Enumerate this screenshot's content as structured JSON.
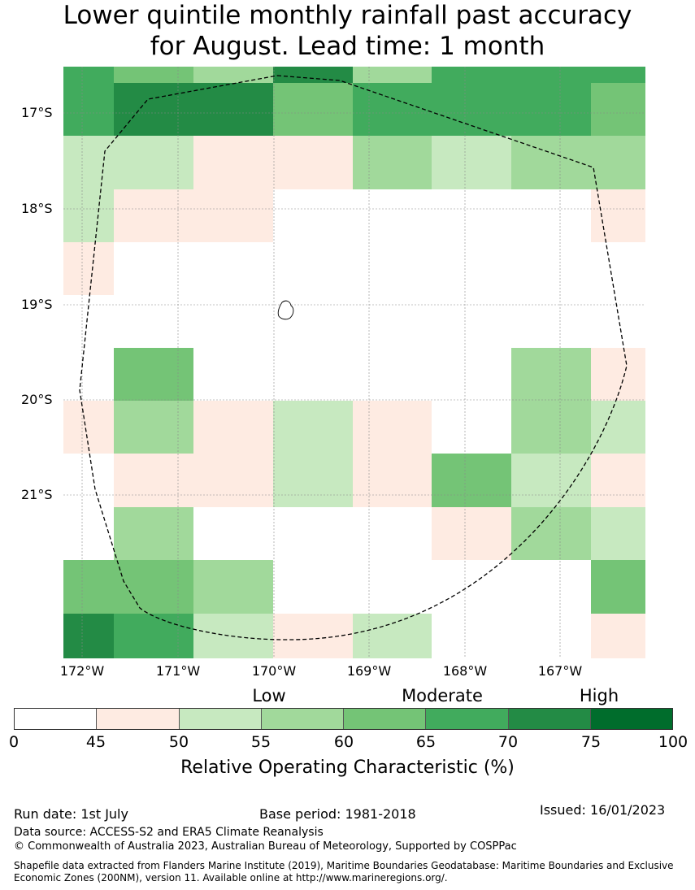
{
  "title_line1": "Lower quintile monthly rainfall past accuracy",
  "title_line2": "for August. Lead time: 1 month",
  "lat_labels": [
    "17°S",
    "18°S",
    "19°S",
    "20°S",
    "21°S"
  ],
  "lon_labels": [
    "172°W",
    "171°W",
    "170°W",
    "169°W",
    "168°W",
    "167°W"
  ],
  "category_labels": {
    "low": "Low",
    "moderate": "Moderate",
    "high": "High"
  },
  "colorbar": {
    "ticks": [
      "0",
      "45",
      "50",
      "55",
      "60",
      "65",
      "70",
      "75",
      "100"
    ],
    "colors": [
      "#ffffff",
      "#feebe2",
      "#c7e9c0",
      "#a1d99b",
      "#74c476",
      "#41ab5d",
      "#238b45",
      "#006d2c"
    ],
    "label": "Relative Operating Characteristic (%)"
  },
  "map_grid": {
    "value_class_legend": "0=<45 (white), 1=45-50, 2=50-55, 3=55-60, 4=60-65, 5=65-70, 6=70-75, 7=75-100",
    "rows": [
      [
        5,
        4,
        3,
        6,
        3,
        5,
        5,
        5
      ],
      [
        5,
        6,
        6,
        4,
        5,
        5,
        5,
        4
      ],
      [
        2,
        2,
        1,
        1,
        3,
        2,
        3,
        3
      ],
      [
        2,
        1,
        1,
        0,
        0,
        0,
        0,
        1
      ],
      [
        1,
        0,
        0,
        0,
        0,
        0,
        0,
        0
      ],
      [
        0,
        0,
        0,
        0,
        0,
        0,
        0,
        0
      ],
      [
        0,
        4,
        0,
        0,
        0,
        0,
        3,
        1
      ],
      [
        1,
        3,
        1,
        2,
        1,
        0,
        3,
        2
      ],
      [
        0,
        1,
        1,
        2,
        1,
        4,
        2,
        1
      ],
      [
        0,
        3,
        0,
        0,
        0,
        1,
        3,
        2
      ],
      [
        4,
        4,
        3,
        0,
        0,
        0,
        0,
        4
      ],
      [
        6,
        5,
        2,
        1,
        2,
        0,
        0,
        1
      ]
    ]
  },
  "footer": {
    "run_date": "Run date: 1st July",
    "base_period": "Base period: 1981-2018",
    "issued": "Issued: 16/01/2023",
    "data_source": "Data source: ACCESS-S2 and ERA5 Climate Reanalysis",
    "copyright": "© Commonwealth of Australia 2023, Australian Bureau of Meteorology, Supported by COSPPac",
    "shapefile_line1": "Shapefile data extracted from Flanders Marine Institute (2019), Maritime Boundaries Geodatabase: Maritime Boundaries and Exclusive",
    "shapefile_line2": "Economic Zones (200NM), version 11. Available online at http://www.marineregions.org/."
  }
}
